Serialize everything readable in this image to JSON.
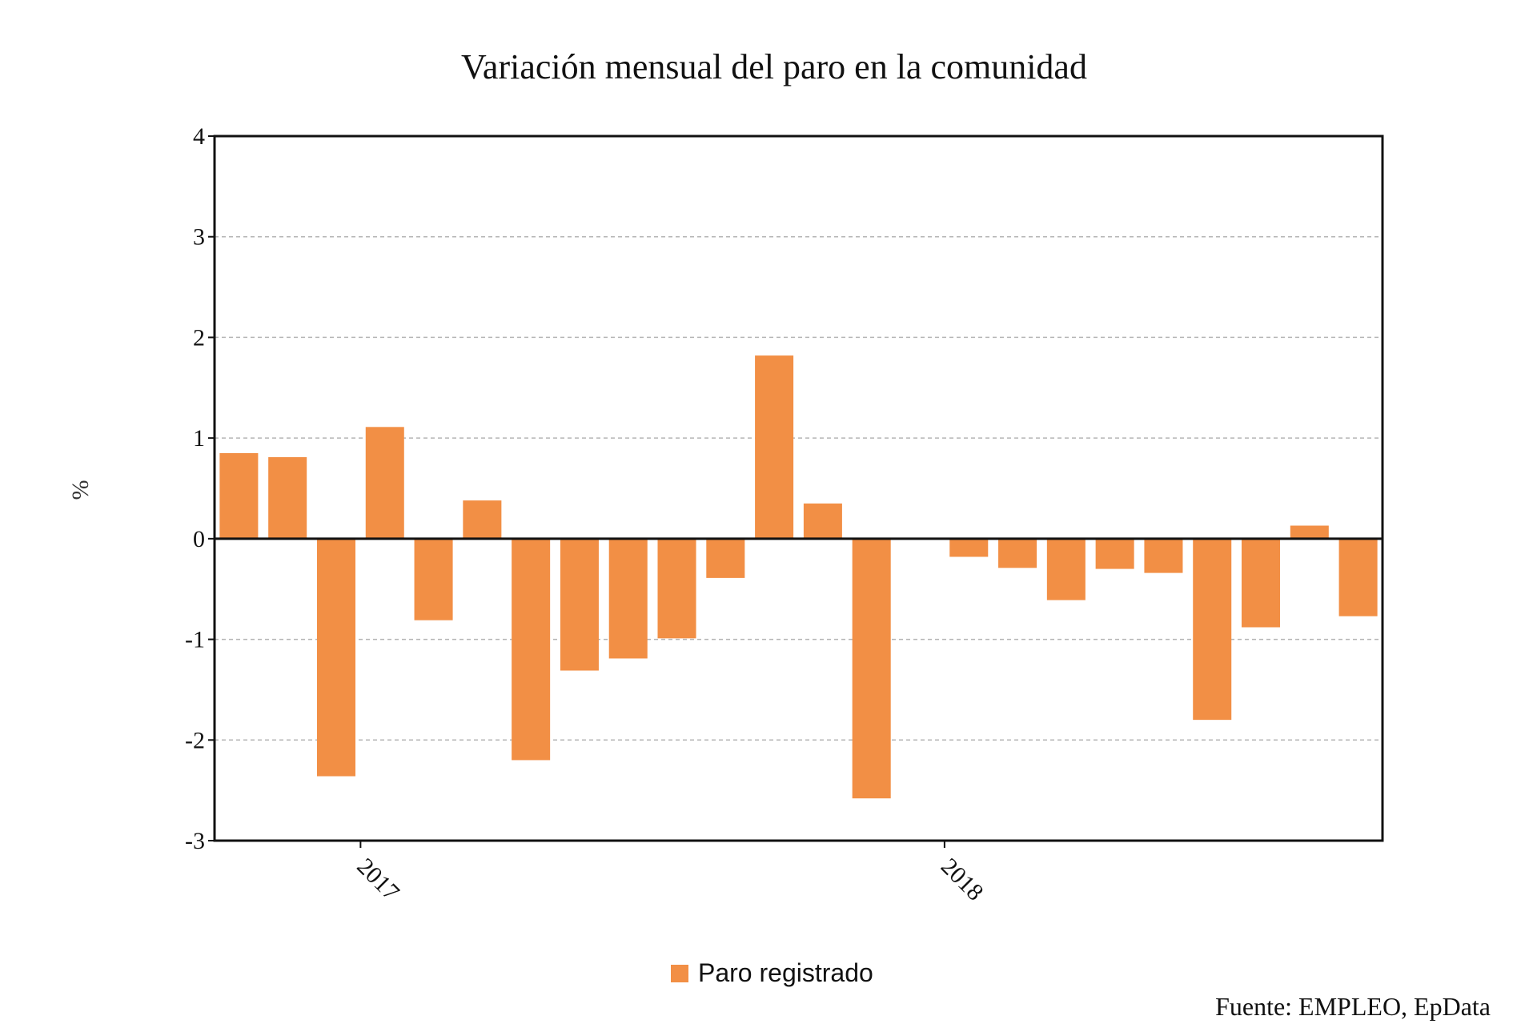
{
  "chart_data": {
    "type": "bar",
    "title": "Variación mensual del paro en la comunidad",
    "ylabel": "%",
    "xlabel": "",
    "ylim": [
      -3,
      4
    ],
    "yticks": [
      "4",
      "3",
      "2",
      "1",
      "0",
      "-1",
      "-2",
      "-3"
    ],
    "xticks": [
      {
        "label": "2017",
        "after_index": 2
      },
      {
        "label": "2018",
        "after_index": 14
      }
    ],
    "grid": true,
    "legend_position": "bottom-center",
    "series": [
      {
        "name": "Paro registrado",
        "color": "#f28f45",
        "values": [
          0.85,
          0.81,
          -2.36,
          1.11,
          -0.81,
          0.38,
          -2.2,
          -1.31,
          -1.19,
          -0.99,
          -0.39,
          1.82,
          0.35,
          -2.58,
          0.0,
          -0.18,
          -0.29,
          -0.61,
          -0.3,
          -0.34,
          -1.8,
          -0.88,
          0.13,
          -0.77
        ]
      }
    ]
  },
  "source": "Fuente: EMPLEO, EpData"
}
